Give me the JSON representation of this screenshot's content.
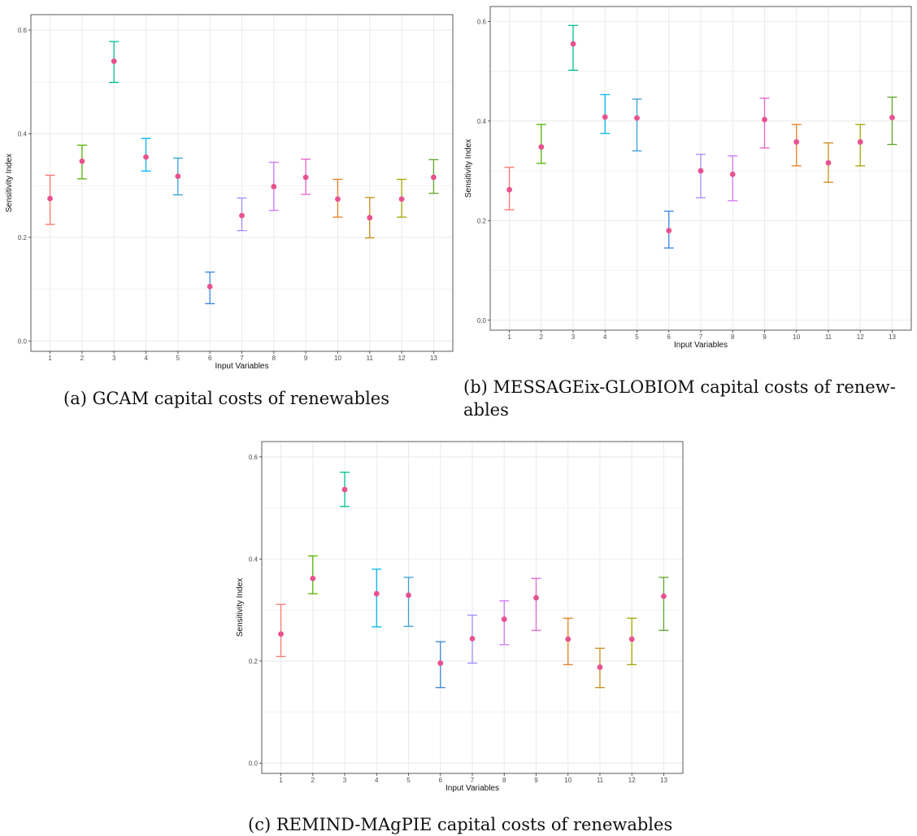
{
  "colors": {
    "point": "#e8528f",
    "series": [
      "#f8766d",
      "#53b400",
      "#00c094",
      "#00b6eb",
      "#3b9ed8",
      "#3a86e0",
      "#a58aff",
      "#d077f6",
      "#e463cf",
      "#e77f1f",
      "#c98c1b",
      "#a3a500",
      "#5ea52c"
    ],
    "grid": "#ebebeb",
    "panel_border": "#333333"
  },
  "chart_data": [
    {
      "type": "scatter",
      "caption": "(a) GCAM capital costs of renewables",
      "xlabel": "Input Variables",
      "ylabel": "Sensitivity Index",
      "ylim": [
        -0.02,
        0.63
      ],
      "yticks": [
        "0.0",
        "0.2",
        "0.4",
        "0.6"
      ],
      "categories": [
        "1",
        "2",
        "3",
        "4",
        "5",
        "6",
        "7",
        "8",
        "9",
        "10",
        "11",
        "12",
        "13"
      ],
      "values": [
        0.275,
        0.347,
        0.54,
        0.355,
        0.318,
        0.105,
        0.242,
        0.298,
        0.316,
        0.274,
        0.238,
        0.274,
        0.316
      ],
      "lower": [
        0.225,
        0.313,
        0.499,
        0.328,
        0.282,
        0.072,
        0.213,
        0.252,
        0.283,
        0.239,
        0.199,
        0.239,
        0.285
      ],
      "upper": [
        0.32,
        0.378,
        0.578,
        0.391,
        0.353,
        0.133,
        0.276,
        0.345,
        0.351,
        0.312,
        0.277,
        0.312,
        0.35
      ],
      "grid": true
    },
    {
      "type": "scatter",
      "caption": "(b) MESSAGEix-GLOBIOM capital costs of renew-ables",
      "xlabel": "Input Variables",
      "ylabel": "Sensitivity Index",
      "ylim": [
        -0.02,
        0.63
      ],
      "yticks": [
        "0.0",
        "0.2",
        "0.4",
        "0.6"
      ],
      "categories": [
        "1",
        "2",
        "3",
        "4",
        "5",
        "6",
        "7",
        "8",
        "9",
        "10",
        "11",
        "12",
        "13"
      ],
      "values": [
        0.262,
        0.348,
        0.555,
        0.408,
        0.406,
        0.18,
        0.3,
        0.293,
        0.403,
        0.358,
        0.316,
        0.358,
        0.407
      ],
      "lower": [
        0.222,
        0.315,
        0.502,
        0.375,
        0.34,
        0.145,
        0.246,
        0.24,
        0.346,
        0.31,
        0.277,
        0.31,
        0.353
      ],
      "upper": [
        0.307,
        0.393,
        0.592,
        0.453,
        0.444,
        0.219,
        0.333,
        0.33,
        0.446,
        0.393,
        0.356,
        0.393,
        0.448
      ],
      "grid": true
    },
    {
      "type": "scatter",
      "caption": "(c) REMIND-MAgPIE capital costs of renewables",
      "xlabel": "Input Variables",
      "ylabel": "Sensitivity Index",
      "ylim": [
        -0.02,
        0.63
      ],
      "yticks": [
        "0.0",
        "0.2",
        "0.4",
        "0.6"
      ],
      "categories": [
        "1",
        "2",
        "3",
        "4",
        "5",
        "6",
        "7",
        "8",
        "9",
        "10",
        "11",
        "12",
        "13"
      ],
      "values": [
        0.253,
        0.362,
        0.536,
        0.332,
        0.329,
        0.196,
        0.244,
        0.282,
        0.324,
        0.243,
        0.188,
        0.243,
        0.327
      ],
      "lower": [
        0.209,
        0.332,
        0.503,
        0.267,
        0.268,
        0.148,
        0.196,
        0.232,
        0.26,
        0.193,
        0.148,
        0.193,
        0.26
      ],
      "upper": [
        0.311,
        0.406,
        0.57,
        0.38,
        0.364,
        0.238,
        0.29,
        0.318,
        0.362,
        0.284,
        0.225,
        0.284,
        0.364
      ],
      "grid": true
    }
  ]
}
